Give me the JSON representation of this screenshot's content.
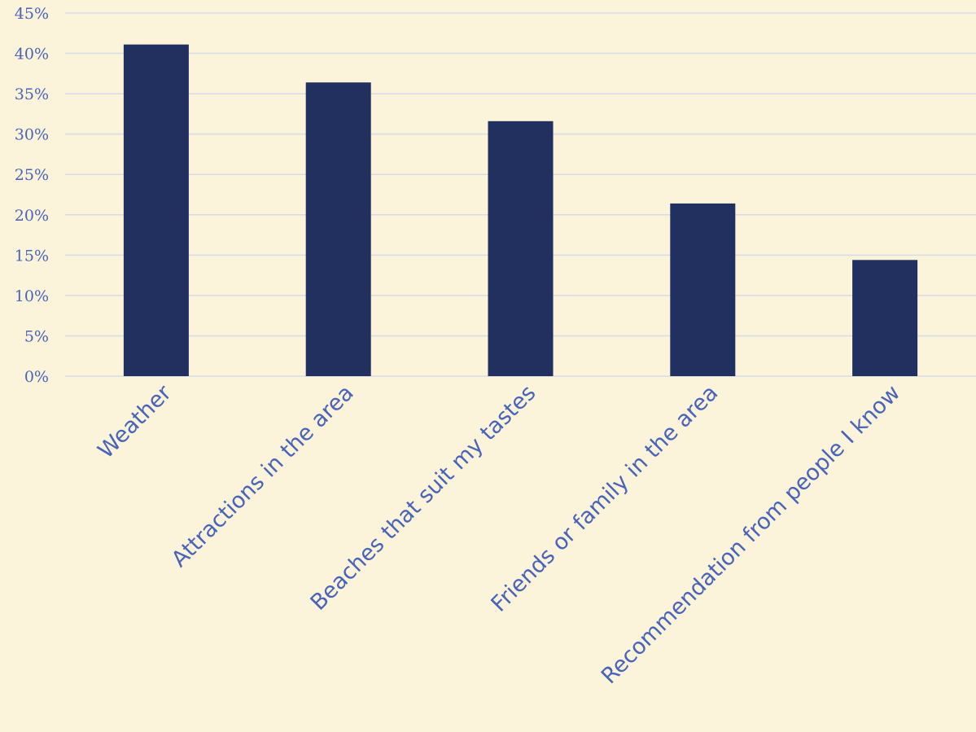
{
  "chart_data": {
    "type": "bar",
    "title": "",
    "xlabel": "",
    "ylabel": "",
    "categories": [
      "Weather",
      "Attractions in the area",
      "Beaches that suit my tastes",
      "Friends or family in the area",
      "Recommendation from people I know"
    ],
    "series": [
      {
        "values": [
          41.1,
          36.4,
          31.6,
          21.4,
          14.4
        ]
      }
    ],
    "ylim": [
      0,
      45
    ],
    "yticks": [
      0,
      5,
      10,
      15,
      20,
      25,
      30,
      35,
      40,
      45
    ],
    "ytick_labels": [
      "0%",
      "5%",
      "10%",
      "15%",
      "20%",
      "25%",
      "30%",
      "35%",
      "40%",
      "45%"
    ],
    "grid": true,
    "legend": "none",
    "colors": {
      "bar": "#223060",
      "background": "#fbf4da",
      "grid": "#d7dbe6",
      "text": "#4a63b8"
    }
  }
}
